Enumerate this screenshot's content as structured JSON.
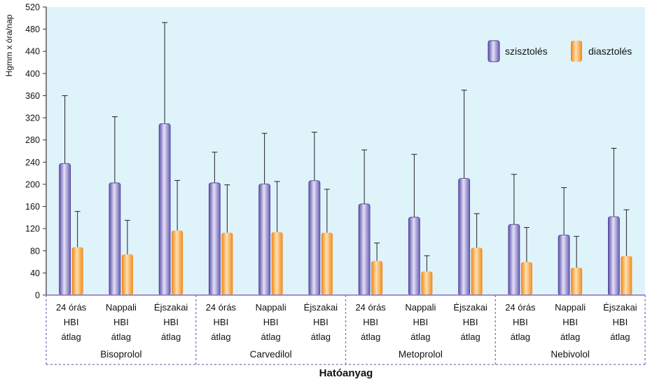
{
  "chart_data": {
    "type": "bar",
    "title": "",
    "xlabel": "Hatóanyag",
    "ylabel": "Hgmm x óra/nap",
    "ylim": [
      0,
      520
    ],
    "yticks": [
      0,
      40,
      80,
      120,
      160,
      200,
      240,
      280,
      320,
      360,
      400,
      440,
      480,
      520
    ],
    "legend_position": "top-right",
    "colors": {
      "plot_bg": "#dff3fb",
      "bar_sys_dark": "#6a5fb4",
      "bar_sys_light": "#d8d4f2",
      "bar_dia_dark": "#f08a18",
      "bar_dia_light": "#ffd9a6",
      "axis": "#8a6cc6",
      "error_bar": "#222222"
    },
    "groups": [
      {
        "name": "Bisoprolol",
        "categories": [
          [
            "24 órás",
            "HBI",
            "átlag"
          ],
          [
            "Nappali",
            "HBI",
            "átlag"
          ],
          [
            "Éjszakai",
            "HBI",
            "átlag"
          ]
        ]
      },
      {
        "name": "Carvedilol",
        "categories": [
          [
            "24 órás",
            "HBI",
            "átlag"
          ],
          [
            "Nappali",
            "HBI",
            "átlag"
          ],
          [
            "Éjszakai",
            "HBI",
            "átlag"
          ]
        ]
      },
      {
        "name": "Metoprolol",
        "categories": [
          [
            "24 órás",
            "HBI",
            "átlag"
          ],
          [
            "Nappali",
            "HBI",
            "átlag"
          ],
          [
            "Éjszakai",
            "HBI",
            "átlag"
          ]
        ]
      },
      {
        "name": "Nebivolol",
        "categories": [
          [
            "24 órás",
            "HBI",
            "átlag"
          ],
          [
            "Nappali",
            "HBI",
            "átlag"
          ],
          [
            "Éjszakai",
            "HBI",
            "átlag"
          ]
        ]
      }
    ],
    "series": [
      {
        "name": "szisztolés",
        "values": [
          235,
          200,
          307,
          200,
          198,
          204,
          162,
          138,
          208,
          125,
          106,
          139
        ],
        "error_upper": [
          360,
          322,
          492,
          258,
          292,
          294,
          262,
          254,
          370,
          218,
          194,
          265
        ]
      },
      {
        "name": "diasztolés",
        "values": [
          84,
          71,
          114,
          110,
          111,
          110,
          59,
          40,
          83,
          57,
          47,
          68
        ],
        "error_upper": [
          151,
          135,
          207,
          199,
          205,
          191,
          94,
          71,
          147,
          122,
          106,
          154
        ]
      }
    ]
  }
}
